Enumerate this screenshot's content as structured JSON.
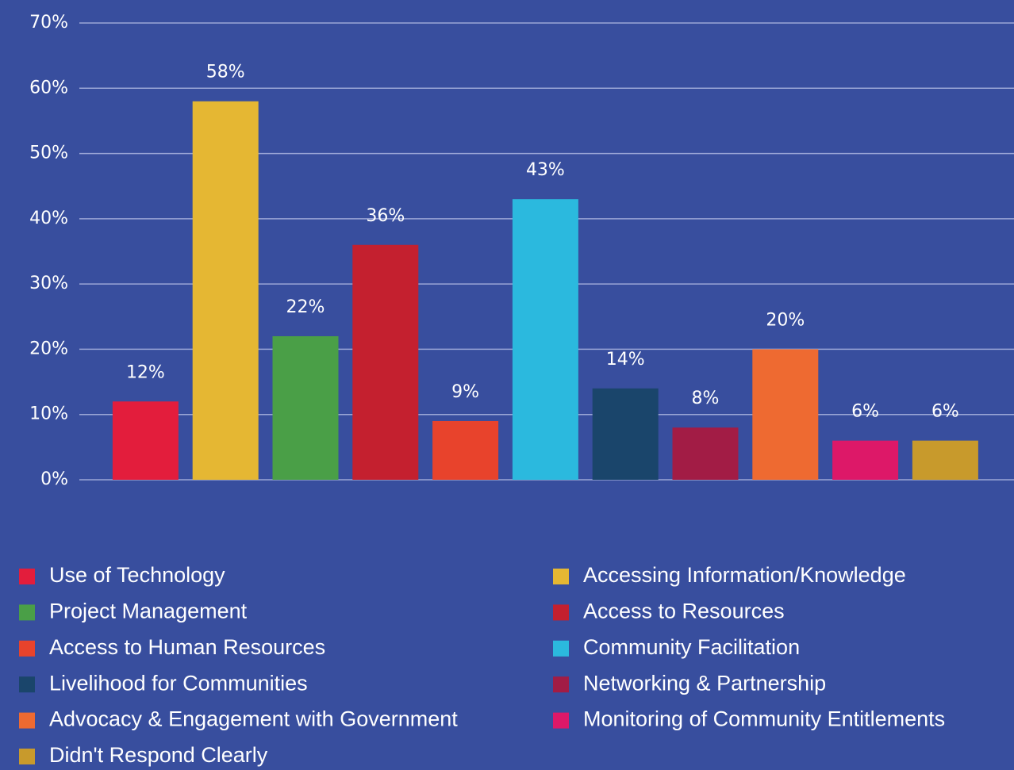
{
  "chart_data": {
    "type": "bar",
    "categories": [
      "Use of Technology",
      "Accessing Information/Knowledge",
      "Project Management",
      "Access to Resources",
      "Access to Human Resources",
      "Community Facilitation",
      "Livelihood for Communities",
      "Networking & Partnership",
      "Advocacy & Engagement with Government",
      "Monitoring of Community Entitlements",
      "Didn't Respond Clearly"
    ],
    "values": [
      12,
      58,
      22,
      36,
      9,
      43,
      14,
      8,
      20,
      6,
      6
    ],
    "value_labels": [
      "12%",
      "58%",
      "22%",
      "36%",
      "9%",
      "43%",
      "14%",
      "8%",
      "20%",
      "6%",
      "6%"
    ],
    "colors": [
      "#e31d3c",
      "#e5b733",
      "#4a9f47",
      "#c4202f",
      "#e8432c",
      "#2bb9de",
      "#1a456b",
      "#a21c45",
      "#ee6a31",
      "#dd1868",
      "#c89a2c"
    ],
    "ylim": [
      0,
      70
    ],
    "yticks": [
      {
        "value": 0,
        "label": "0%"
      },
      {
        "value": 10,
        "label": "10%"
      },
      {
        "value": 20,
        "label": "20%"
      },
      {
        "value": 30,
        "label": "30%"
      },
      {
        "value": 40,
        "label": "40%"
      },
      {
        "value": 50,
        "label": "50%"
      },
      {
        "value": 60,
        "label": "60%"
      },
      {
        "value": 70,
        "label": "70%"
      }
    ],
    "grid": true
  }
}
